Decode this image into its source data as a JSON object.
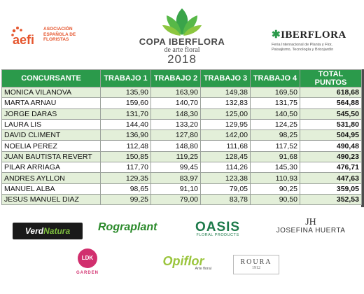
{
  "header": {
    "aefi": {
      "wordmark": "aefi",
      "subtitle": [
        "ASOCIACIÓN",
        "ESPAÑOLA DE",
        "FLORISTAS"
      ]
    },
    "copa": {
      "line1": "COPA IBERFLORA",
      "line2": "de arte floral",
      "year": "2018"
    },
    "iberflora": {
      "title": "IBERFLORA",
      "subtitle": [
        "Feria Internacional de Planta y Flor,",
        "Paisajismo, Tecnología y Bricojardín"
      ]
    }
  },
  "table": {
    "headers": [
      "CONCURSANTE",
      "TRABAJO 1",
      "TRABAJO 2",
      "TRABAJO 3",
      "TRABAJO 4",
      "TOTAL PUNTOS"
    ],
    "rows": [
      [
        "MONICA VILANOVA",
        "135,90",
        "163,90",
        "149,38",
        "169,50",
        "618,68"
      ],
      [
        "MARTA ARNAU",
        "159,60",
        "140,70",
        "132,83",
        "131,75",
        "564,88"
      ],
      [
        "JORGE DARAS",
        "131,70",
        "148,30",
        "125,00",
        "140,50",
        "545,50"
      ],
      [
        "LAURA LIS",
        "144,40",
        "133,20",
        "129,95",
        "124,25",
        "531,80"
      ],
      [
        "DAVID CLIMENT",
        "136,90",
        "127,80",
        "142,00",
        "98,25",
        "504,95"
      ],
      [
        "NOELIA PEREZ",
        "112,48",
        "148,80",
        "111,68",
        "117,52",
        "490,48"
      ],
      [
        "JUAN BAUTISTA REVERT",
        "150,85",
        "119,25",
        "128,45",
        "91,68",
        "490,23"
      ],
      [
        "PILAR ARRIAGA",
        "117,70",
        "99,45",
        "114,26",
        "145,30",
        "476,71"
      ],
      [
        "ANDRES AYLLON",
        "129,35",
        "83,97",
        "123,38",
        "110,93",
        "447,63"
      ],
      [
        "MANUEL ALBA",
        "98,65",
        "91,10",
        "79,05",
        "90,25",
        "359,05"
      ],
      [
        "JESUS MANUEL DIAZ",
        "99,25",
        "79,00",
        "83,78",
        "90,50",
        "352,53"
      ]
    ]
  },
  "sponsors": {
    "verdnatura": [
      "Verd",
      "Natura"
    ],
    "rograplant": "Rograplant",
    "oasis": {
      "word": "OASIS",
      "sub": "FLORAL PRODUCTS"
    },
    "josefina": {
      "mark": "JH",
      "name": "JOSEFINA HUERTA"
    },
    "ldk": {
      "mark": "LDK",
      "sub": "GARDEN"
    },
    "opiflor": {
      "word": "Opiflor",
      "sub": "Arte floral"
    },
    "roura": {
      "word": "ROURA",
      "year": "1912"
    }
  },
  "colors": {
    "header_green": "#2b9a4b",
    "row_shade": "#e3efd9",
    "aefi_orange": "#e5552d"
  }
}
